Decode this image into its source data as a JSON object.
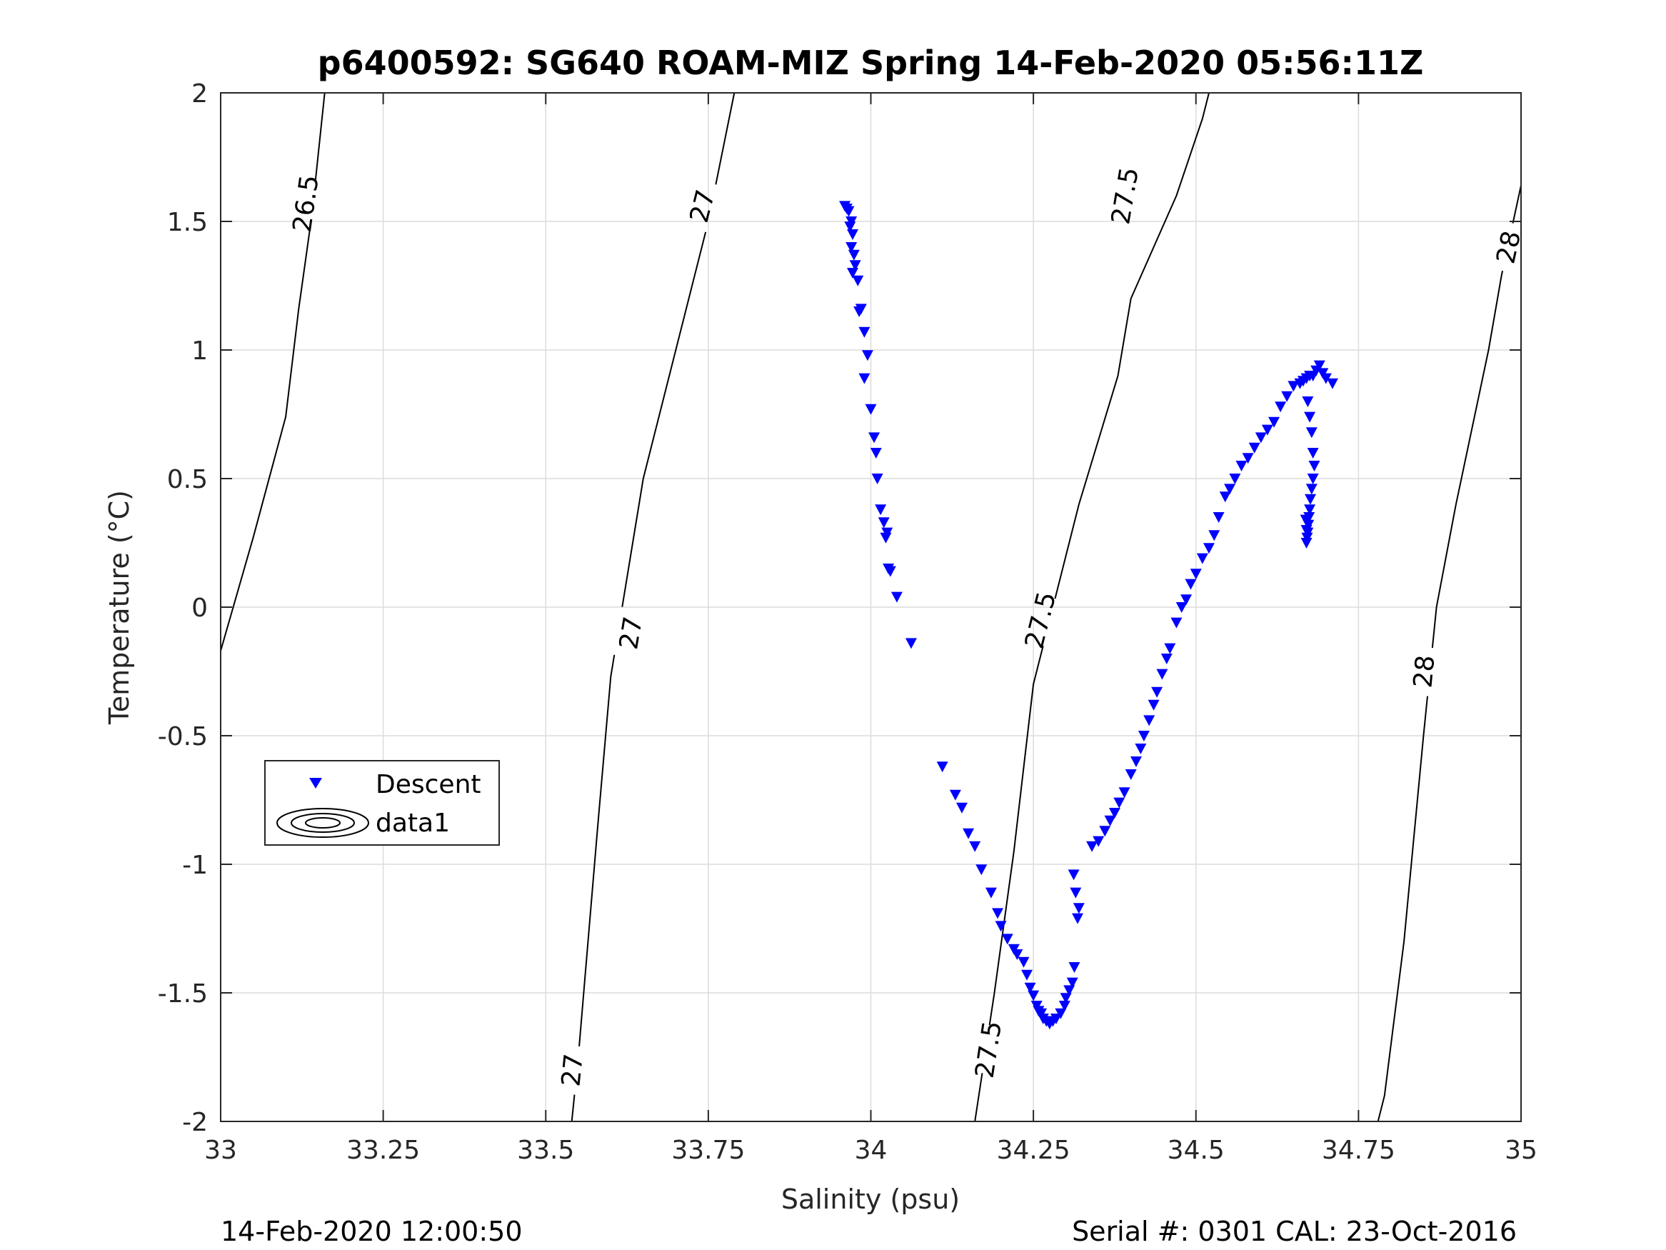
{
  "chart_data": {
    "type": "scatter",
    "title": "p6400592: SG640 ROAM-MIZ Spring 14-Feb-2020 05:56:11Z",
    "xlabel": "Salinity (psu)",
    "ylabel": "Temperature (°C)",
    "xlim": [
      33,
      35
    ],
    "ylim": [
      -2,
      2
    ],
    "x_ticks": [
      33,
      33.25,
      33.5,
      33.75,
      34,
      34.25,
      34.5,
      34.75,
      35
    ],
    "x_tick_labels": [
      "33",
      "33.25",
      "33.5",
      "33.75",
      "34",
      "34.25",
      "34.5",
      "34.75",
      "35"
    ],
    "y_ticks": [
      2,
      1.5,
      1,
      0.5,
      0,
      -0.5,
      -1,
      -1.5,
      -2
    ],
    "y_tick_labels": [
      "2",
      "1.5",
      "1",
      "0.5",
      "0",
      "-0.5",
      "-1",
      "-1.5",
      "-2"
    ],
    "grid": true,
    "legend_position": "lower-left",
    "legend": [
      "Descent",
      "data1"
    ],
    "marker_color": "#0000ff",
    "series": [
      {
        "name": "Descent",
        "marker": "triangle-down",
        "x": [
          33.96,
          33.963,
          33.966,
          33.97,
          33.968,
          33.972,
          33.97,
          33.974,
          33.976,
          33.972,
          33.98,
          33.985,
          33.982,
          33.99,
          33.995,
          33.99,
          34.0,
          34.005,
          34.008,
          34.01,
          34.015,
          34.02,
          34.025,
          34.023,
          34.027,
          34.03,
          34.04,
          34.062,
          34.11,
          34.13,
          34.14,
          34.15,
          34.16,
          34.17,
          34.185,
          34.195,
          34.2,
          34.21,
          34.22,
          34.225,
          34.235,
          34.24,
          34.245,
          34.25,
          34.255,
          34.258,
          34.262,
          34.265,
          34.27,
          34.275,
          34.28,
          34.285,
          34.292,
          34.298,
          34.3,
          34.305,
          34.31,
          34.313,
          34.318,
          34.312,
          34.315,
          34.32,
          34.34,
          34.35,
          34.36,
          34.368,
          34.375,
          34.382,
          34.39,
          34.4,
          34.408,
          34.415,
          34.42,
          34.428,
          34.435,
          34.44,
          34.448,
          34.455,
          34.46,
          34.47,
          34.478,
          34.485,
          34.492,
          34.5,
          34.51,
          34.52,
          34.528,
          34.535,
          34.545,
          34.552,
          34.56,
          34.57,
          34.58,
          34.59,
          34.6,
          34.61,
          34.62,
          34.63,
          34.64,
          34.65,
          34.66,
          34.665,
          34.67,
          34.675,
          34.68,
          34.685,
          34.69,
          34.695,
          34.7,
          34.71,
          34.672,
          34.675,
          34.678,
          34.68,
          34.682,
          34.68,
          34.678,
          34.676,
          34.675,
          34.674,
          34.673,
          34.672,
          34.671,
          34.67,
          34.67,
          34.669
        ],
        "y": [
          1.56,
          1.55,
          1.54,
          1.5,
          1.48,
          1.45,
          1.4,
          1.37,
          1.33,
          1.3,
          1.27,
          1.16,
          1.15,
          1.07,
          0.98,
          0.89,
          0.77,
          0.66,
          0.6,
          0.5,
          0.38,
          0.33,
          0.29,
          0.27,
          0.15,
          0.14,
          0.04,
          -0.14,
          -0.62,
          -0.73,
          -0.78,
          -0.88,
          -0.93,
          -1.02,
          -1.11,
          -1.19,
          -1.24,
          -1.29,
          -1.33,
          -1.35,
          -1.38,
          -1.43,
          -1.48,
          -1.51,
          -1.55,
          -1.57,
          -1.58,
          -1.6,
          -1.61,
          -1.62,
          -1.61,
          -1.6,
          -1.58,
          -1.55,
          -1.52,
          -1.49,
          -1.46,
          -1.4,
          -1.21,
          -1.04,
          -1.11,
          -1.17,
          -0.93,
          -0.91,
          -0.87,
          -0.83,
          -0.8,
          -0.76,
          -0.72,
          -0.65,
          -0.6,
          -0.55,
          -0.5,
          -0.44,
          -0.38,
          -0.33,
          -0.26,
          -0.2,
          -0.16,
          -0.06,
          0.0,
          0.03,
          0.09,
          0.13,
          0.19,
          0.23,
          0.28,
          0.35,
          0.43,
          0.46,
          0.5,
          0.55,
          0.58,
          0.62,
          0.66,
          0.69,
          0.72,
          0.78,
          0.82,
          0.86,
          0.87,
          0.88,
          0.89,
          0.9,
          0.9,
          0.92,
          0.94,
          0.91,
          0.89,
          0.87,
          0.8,
          0.74,
          0.68,
          0.6,
          0.55,
          0.5,
          0.46,
          0.42,
          0.38,
          0.35,
          0.32,
          0.29,
          0.27,
          0.25,
          0.3,
          0.34
        ]
      }
    ],
    "contours": [
      {
        "label": "26.5",
        "points": [
          [
            33.0,
            -0.17
          ],
          [
            33.05,
            0.27
          ],
          [
            33.1,
            0.74
          ],
          [
            33.12,
            1.16
          ],
          [
            33.14,
            1.52
          ],
          [
            33.16,
            2.0
          ]
        ],
        "labels_at": [
          [
            33.13,
            1.57
          ]
        ]
      },
      {
        "label": "27",
        "points": [
          [
            33.54,
            -2.0
          ],
          [
            33.55,
            -1.75
          ],
          [
            33.58,
            -0.85
          ],
          [
            33.6,
            -0.27
          ],
          [
            33.65,
            0.5
          ],
          [
            33.75,
            1.5
          ],
          [
            33.79,
            2.0
          ]
        ],
        "labels_at": [
          [
            33.54,
            -1.8
          ],
          [
            33.63,
            -0.1
          ],
          [
            33.74,
            1.56
          ]
        ]
      },
      {
        "label": "27.5",
        "points": [
          [
            34.16,
            -2.0
          ],
          [
            34.19,
            -1.5
          ],
          [
            34.22,
            -0.95
          ],
          [
            34.25,
            -0.3
          ],
          [
            34.32,
            0.4
          ],
          [
            34.38,
            0.9
          ],
          [
            34.4,
            1.2
          ],
          [
            34.47,
            1.6
          ],
          [
            34.51,
            1.9
          ],
          [
            34.52,
            2.0
          ]
        ],
        "labels_at": [
          [
            34.18,
            -1.72
          ],
          [
            34.26,
            -0.05
          ],
          [
            34.39,
            1.6
          ]
        ]
      },
      {
        "label": "28",
        "points": [
          [
            34.78,
            -2.0
          ],
          [
            34.79,
            -1.9
          ],
          [
            34.82,
            -1.3
          ],
          [
            34.85,
            -0.5
          ],
          [
            34.87,
            0.0
          ],
          [
            34.9,
            0.4
          ],
          [
            34.95,
            1.0
          ],
          [
            34.97,
            1.29
          ],
          [
            35.0,
            1.64
          ]
        ],
        "labels_at": [
          [
            34.85,
            -0.25
          ],
          [
            34.98,
            1.4
          ]
        ]
      }
    ]
  },
  "footer": {
    "left_text": "14-Feb-2020 12:00:50",
    "right_text": "Serial #: 0301  CAL: 23-Oct-2016"
  }
}
